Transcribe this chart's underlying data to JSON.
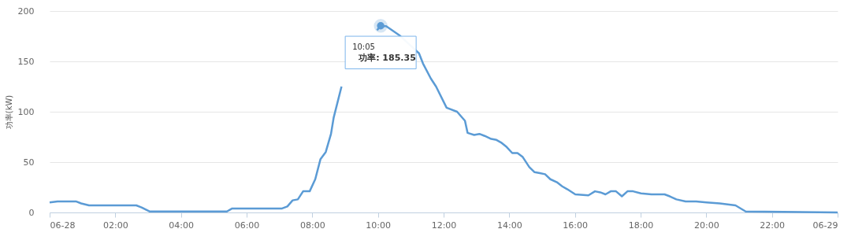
{
  "chart_data": {
    "type": "line",
    "ylabel": "功率(kW)",
    "x": [
      0,
      0.24,
      0.8,
      0.96,
      1.2,
      2.64,
      2.8,
      3.04,
      5.4,
      5.56,
      7.08,
      7.24,
      7.4,
      7.56,
      7.72,
      7.92,
      8.09,
      8.25,
      8.41,
      8.57,
      8.65,
      8.89,
      9.13,
      9.5,
      9.97,
      10.0833,
      10.25,
      10.65,
      11.25,
      11.37,
      11.61,
      11.77,
      12.09,
      12.41,
      12.65,
      12.73,
      12.93,
      13.09,
      13.25,
      13.45,
      13.61,
      13.77,
      13.92,
      14.09,
      14.25,
      14.41,
      14.61,
      14.77,
      14.93,
      15.09,
      15.25,
      15.45,
      15.61,
      15.77,
      16.01,
      16.41,
      16.61,
      16.77,
      16.93,
      17.09,
      17.25,
      17.43,
      17.6,
      17.77,
      18.01,
      18.33,
      18.73,
      18.89,
      19.09,
      19.37,
      19.69,
      20.01,
      20.41,
      20.89,
      21.2,
      24
    ],
    "series": [
      {
        "color": "#5b9bd5",
        "values": [
          10,
          11,
          11,
          9,
          7,
          7,
          5,
          1,
          1,
          4,
          4,
          6,
          12,
          13,
          21,
          21,
          33,
          53,
          60,
          78,
          94,
          125,
          null,
          null,
          181,
          185,
          185,
          176,
          158,
          148,
          133,
          125,
          104,
          100,
          91,
          79,
          77,
          78,
          76,
          73,
          72,
          69,
          65,
          59,
          59,
          55,
          45,
          40,
          39,
          38,
          33,
          30,
          26,
          23,
          18,
          17,
          21,
          20,
          18,
          21,
          21,
          16,
          21,
          21,
          19,
          18,
          18,
          16,
          13,
          11,
          11,
          10,
          9,
          7,
          1,
          0
        ]
      }
    ],
    "xlim": [
      0,
      24
    ],
    "xticks": [
      {
        "value": 0,
        "label": "06-28"
      },
      {
        "value": 2,
        "label": "02:00"
      },
      {
        "value": 4,
        "label": "04:00"
      },
      {
        "value": 6,
        "label": "06:00"
      },
      {
        "value": 8,
        "label": "08:00"
      },
      {
        "value": 10,
        "label": "10:00"
      },
      {
        "value": 12,
        "label": "12:00"
      },
      {
        "value": 14,
        "label": "14:00"
      },
      {
        "value": 16,
        "label": "16:00"
      },
      {
        "value": 18,
        "label": "18:00"
      },
      {
        "value": 20,
        "label": "20:00"
      },
      {
        "value": 22,
        "label": "22:00"
      },
      {
        "value": 24,
        "label": "06-29"
      }
    ],
    "ylim": [
      0,
      200
    ],
    "yticks": [
      0,
      50,
      100,
      150,
      200
    ],
    "grid": "y",
    "marker": "none",
    "line_style": "solid",
    "annotations": [
      {
        "text": "10:05",
        "x": 10.0833,
        "y": 185.35
      },
      "功率: 185.35"
    ]
  }
}
